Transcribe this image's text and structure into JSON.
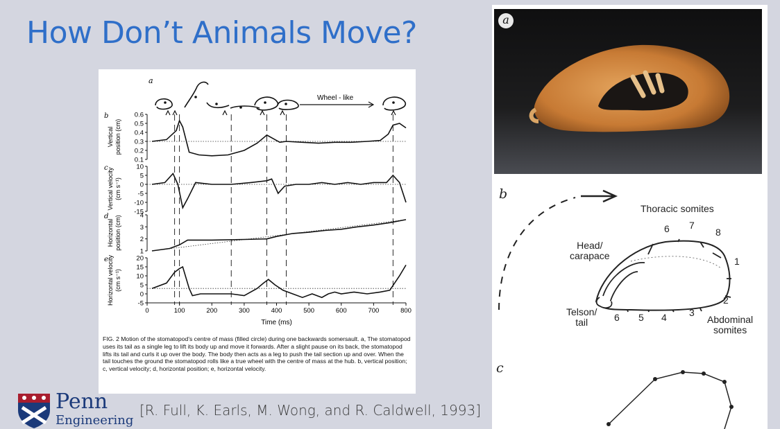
{
  "title": "How Don’t Animals Move?",
  "figure": {
    "panel_a_label": "a",
    "wheel_like_label": "Wheel - like",
    "panels": [
      {
        "letter": "b",
        "ylabel": [
          "Vertical",
          "position (cm)"
        ],
        "ticks": [
          "0.6",
          "0.5",
          "0.4",
          "0.3",
          "0.2",
          "0.1"
        ]
      },
      {
        "letter": "c",
        "ylabel": [
          "Vertical velocity",
          "(cm s⁻¹)"
        ],
        "ticks": [
          "10",
          "5",
          "0",
          "-5",
          "-10",
          "-15"
        ]
      },
      {
        "letter": "d",
        "ylabel": [
          "Horizontal",
          "position (cm)"
        ],
        "ticks": [
          "4",
          "3",
          "2",
          "1"
        ]
      },
      {
        "letter": "e",
        "ylabel": [
          "Horizontal velocity",
          "(cm s⁻¹)"
        ],
        "ticks": [
          "20",
          "15",
          "10",
          "5",
          "0",
          "-5"
        ]
      }
    ],
    "x_ticks": [
      "0",
      "100",
      "200",
      "300",
      "400",
      "500",
      "600",
      "700",
      "800"
    ],
    "xlabel": "Time (ms)",
    "caption": "FIG. 2 Motion of the stomatopod’s centre of mass (filled circle) during one backwards somersault. a, The stomatopod uses its tail as a single leg to lift its body up and move it forwards. After a slight pause on its back, the stomatopod lifts its tail and curls it up over the body. The body then acts as a leg to push the tail section up and over. When the tail touches the ground the stomatopod rolls like a true wheel with the centre of mass at the hub. b, vertical position; c, vertical velocity; d, horizontal position; e, horizontal velocity.",
    "chart_data": [
      {
        "type": "line",
        "x": [
          15,
          60,
          90,
          100,
          110,
          130,
          160,
          200,
          250,
          300,
          340,
          370,
          390,
          410,
          430,
          480,
          530,
          580,
          630,
          680,
          720,
          745,
          760,
          780,
          800
        ],
        "y": [
          0.3,
          0.32,
          0.42,
          0.53,
          0.46,
          0.18,
          0.15,
          0.14,
          0.15,
          0.2,
          0.28,
          0.37,
          0.33,
          0.29,
          0.3,
          0.29,
          0.28,
          0.29,
          0.29,
          0.3,
          0.31,
          0.38,
          0.48,
          0.5,
          0.45
        ],
        "ylim": [
          0.1,
          0.6
        ],
        "xlim": [
          0,
          800
        ]
      },
      {
        "type": "line",
        "x": [
          15,
          55,
          80,
          95,
          110,
          125,
          150,
          200,
          260,
          320,
          370,
          385,
          405,
          425,
          460,
          500,
          540,
          580,
          620,
          660,
          700,
          740,
          760,
          780,
          800
        ],
        "y": [
          0,
          1,
          6,
          0,
          -13,
          -8,
          1,
          0,
          0,
          1,
          2,
          3,
          -5,
          -1,
          0,
          0,
          1,
          0,
          1,
          0,
          1,
          1,
          5,
          1,
          -10
        ],
        "ylim": [
          -15,
          10
        ],
        "xlim": [
          0,
          800
        ]
      },
      {
        "type": "line",
        "x": [
          15,
          70,
          100,
          125,
          200,
          300,
          370,
          400,
          450,
          500,
          550,
          600,
          650,
          700,
          750,
          800
        ],
        "y": [
          1.0,
          1.2,
          1.5,
          1.9,
          1.9,
          1.95,
          2.0,
          2.2,
          2.45,
          2.55,
          2.7,
          2.8,
          3.0,
          3.15,
          3.35,
          3.6
        ],
        "ylim": [
          1,
          4
        ],
        "xlim": [
          0,
          800
        ]
      },
      {
        "type": "line",
        "x": [
          15,
          60,
          85,
          100,
          110,
          130,
          140,
          165,
          210,
          260,
          300,
          340,
          360,
          375,
          395,
          420,
          450,
          480,
          510,
          540,
          560,
          580,
          600,
          640,
          680,
          720,
          750,
          780,
          800
        ],
        "y": [
          3,
          6,
          12,
          14,
          15,
          3,
          -1,
          0,
          0,
          0,
          -1,
          3,
          6,
          8,
          5,
          2,
          0,
          -2,
          0,
          -2,
          0,
          1,
          0,
          1,
          0,
          1,
          2,
          10,
          16
        ],
        "ylim": [
          -5,
          20
        ],
        "xlim": [
          0,
          800
        ]
      }
    ]
  },
  "citation": "[R. Full, K. Earls, M. Wong, and R. Caldwell, 1993]",
  "logo": {
    "word": "Penn",
    "sub": "Engineering"
  },
  "right": {
    "photo_badge": "a",
    "letter_b": "b",
    "letter_c": "c",
    "thoracic": "Thoracic somites",
    "head": "Head/\ncarapace",
    "telson": "Telson/\ntail",
    "abdominal": "Abdominal\nsomites",
    "nums": [
      "6",
      "7",
      "8",
      "1",
      "2",
      "3",
      "4",
      "5",
      "6"
    ]
  }
}
